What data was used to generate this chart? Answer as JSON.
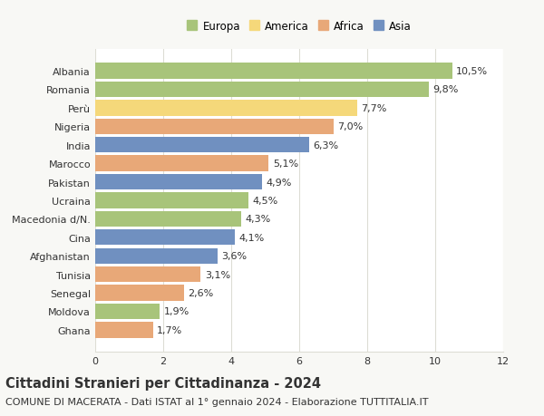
{
  "categories": [
    "Albania",
    "Romania",
    "Perù",
    "Nigeria",
    "India",
    "Marocco",
    "Pakistan",
    "Ucraina",
    "Macedonia d/N.",
    "Cina",
    "Afghanistan",
    "Tunisia",
    "Senegal",
    "Moldova",
    "Ghana"
  ],
  "values": [
    10.5,
    9.8,
    7.7,
    7.0,
    6.3,
    5.1,
    4.9,
    4.5,
    4.3,
    4.1,
    3.6,
    3.1,
    2.6,
    1.9,
    1.7
  ],
  "labels": [
    "10,5%",
    "9,8%",
    "7,7%",
    "7,0%",
    "6,3%",
    "5,1%",
    "4,9%",
    "4,5%",
    "4,3%",
    "4,1%",
    "3,6%",
    "3,1%",
    "2,6%",
    "1,9%",
    "1,7%"
  ],
  "continents": [
    "Europa",
    "Europa",
    "America",
    "Africa",
    "Asia",
    "Africa",
    "Asia",
    "Europa",
    "Europa",
    "Asia",
    "Asia",
    "Africa",
    "Africa",
    "Europa",
    "Africa"
  ],
  "colors": {
    "Europa": "#a8c47a",
    "America": "#f5d87a",
    "Africa": "#e8a878",
    "Asia": "#7090c0"
  },
  "legend_order": [
    "Europa",
    "America",
    "Africa",
    "Asia"
  ],
  "title": "Cittadini Stranieri per Cittadinanza - 2024",
  "subtitle": "COMUNE DI MACERATA - Dati ISTAT al 1° gennaio 2024 - Elaborazione TUTTITALIA.IT",
  "xlim": [
    0,
    12
  ],
  "xticks": [
    0,
    2,
    4,
    6,
    8,
    10,
    12
  ],
  "background_color": "#f8f8f5",
  "bar_background": "#ffffff",
  "grid_color": "#ddddd5",
  "text_color": "#333333",
  "title_fontsize": 10.5,
  "subtitle_fontsize": 8,
  "tick_fontsize": 8,
  "label_fontsize": 8
}
